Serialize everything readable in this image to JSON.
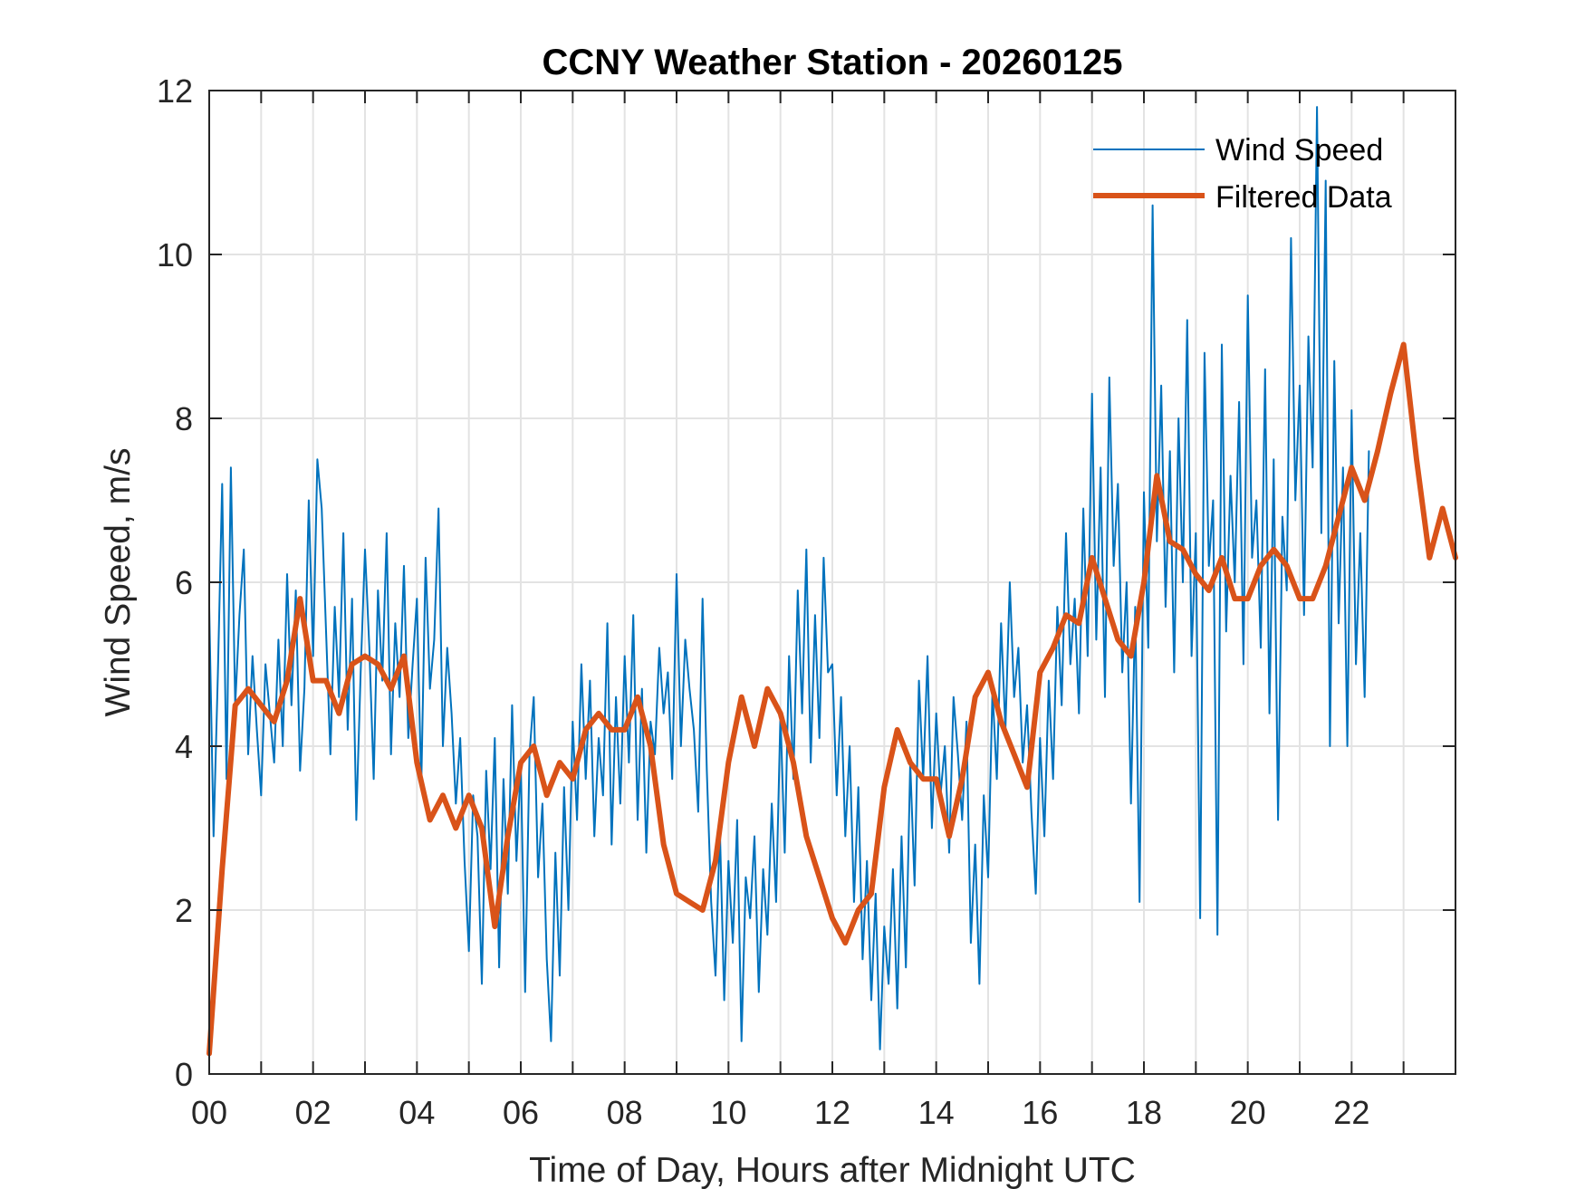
{
  "chart_data": {
    "type": "line",
    "title": "CCNY Weather Station - 20260125",
    "xlabel": "Time of Day, Hours after Midnight UTC",
    "ylabel": "Wind Speed, m/s",
    "xlim": [
      0,
      24
    ],
    "ylim": [
      0,
      12
    ],
    "xticks": [
      0,
      2,
      4,
      6,
      8,
      10,
      12,
      14,
      16,
      18,
      20,
      22
    ],
    "xtick_labels": [
      "00",
      "02",
      "04",
      "06",
      "08",
      "10",
      "12",
      "14",
      "16",
      "18",
      "20",
      "22"
    ],
    "xgrid": [
      0,
      1,
      2,
      3,
      4,
      5,
      6,
      7,
      8,
      9,
      10,
      11,
      12,
      13,
      14,
      15,
      16,
      17,
      18,
      19,
      20,
      21,
      22,
      23
    ],
    "yticks": [
      0,
      2,
      4,
      6,
      8,
      10,
      12
    ],
    "ytick_labels": [
      "0",
      "2",
      "4",
      "6",
      "8",
      "10",
      "12"
    ],
    "grid": true,
    "legend_position": "top-right",
    "series": [
      {
        "name": "Wind Speed",
        "color": "#0072BD",
        "x_start": 0,
        "x_step_hours": 0.0833333,
        "values": [
          5.7,
          2.9,
          4.9,
          7.2,
          3.6,
          7.4,
          4.5,
          5.6,
          6.4,
          3.9,
          5.1,
          4.2,
          3.4,
          5.0,
          4.4,
          3.8,
          5.3,
          4.0,
          6.1,
          4.5,
          5.9,
          3.7,
          4.7,
          7.0,
          5.1,
          7.5,
          6.9,
          5.4,
          3.9,
          5.7,
          4.6,
          6.6,
          4.2,
          5.8,
          3.1,
          4.9,
          6.4,
          5.2,
          3.6,
          5.9,
          4.8,
          6.6,
          3.9,
          5.5,
          4.6,
          6.2,
          4.1,
          5.0,
          5.8,
          3.5,
          6.3,
          4.7,
          5.3,
          6.9,
          4.0,
          5.2,
          4.4,
          3.3,
          4.1,
          2.6,
          1.5,
          3.4,
          2.9,
          1.1,
          3.7,
          2.5,
          4.1,
          1.3,
          3.6,
          2.2,
          4.5,
          2.6,
          3.8,
          1.0,
          3.9,
          4.6,
          2.4,
          3.3,
          1.4,
          0.4,
          2.7,
          1.2,
          3.5,
          2.0,
          4.3,
          3.1,
          5.0,
          3.6,
          4.8,
          2.9,
          4.1,
          3.4,
          5.5,
          2.8,
          4.6,
          3.3,
          5.1,
          3.8,
          5.6,
          3.1,
          4.7,
          2.7,
          4.3,
          3.9,
          5.2,
          4.4,
          4.9,
          3.6,
          6.1,
          4.0,
          5.3,
          4.7,
          4.2,
          3.2,
          5.8,
          3.7,
          2.1,
          1.2,
          3.0,
          0.9,
          2.6,
          1.6,
          3.1,
          0.4,
          2.4,
          1.9,
          2.9,
          1.0,
          2.5,
          1.7,
          3.3,
          2.1,
          4.4,
          2.7,
          5.1,
          3.6,
          5.9,
          4.4,
          6.4,
          3.8,
          5.6,
          4.1,
          6.3,
          4.9,
          5.0,
          3.4,
          4.6,
          2.9,
          4.0,
          2.1,
          3.5,
          1.4,
          2.6,
          0.9,
          2.2,
          0.3,
          1.8,
          1.1,
          2.5,
          0.8,
          2.9,
          1.3,
          3.8,
          2.3,
          4.8,
          3.6,
          5.1,
          3.0,
          4.4,
          3.4,
          4.0,
          2.7,
          4.6,
          3.9,
          3.1,
          4.3,
          1.6,
          2.8,
          1.1,
          3.4,
          2.4,
          4.7,
          3.6,
          5.5,
          4.2,
          6.0,
          4.6,
          5.2,
          3.8,
          4.5,
          3.2,
          2.2,
          4.1,
          2.9,
          4.8,
          3.6,
          5.7,
          4.5,
          6.6,
          5.0,
          5.8,
          4.4,
          6.9,
          5.1,
          8.3,
          5.3,
          7.4,
          4.6,
          8.5,
          6.2,
          7.2,
          4.9,
          6.0,
          3.3,
          5.7,
          2.1,
          7.1,
          5.2,
          10.6,
          6.5,
          8.4,
          5.7,
          7.6,
          4.9,
          8.0,
          6.0,
          9.2,
          5.1,
          6.6,
          1.9,
          8.8,
          6.2,
          7.0,
          1.7,
          8.9,
          5.4,
          7.3,
          6.0,
          8.2,
          5.0,
          9.5,
          6.3,
          7.0,
          5.2,
          8.6,
          4.4,
          7.5,
          3.1,
          6.8,
          5.9,
          10.2,
          7.0,
          8.4,
          5.6,
          9.0,
          7.4,
          11.8,
          6.6,
          10.9,
          4.0,
          8.7,
          5.5,
          7.4,
          4.0,
          8.1,
          5.0,
          6.6,
          4.6,
          7.6
        ]
      },
      {
        "name": "Filtered Data",
        "color": "#D95319",
        "x_start": 0,
        "x_step_hours": 0.25,
        "values": [
          0.25,
          2.5,
          4.5,
          4.7,
          4.5,
          4.3,
          4.8,
          5.8,
          4.8,
          4.8,
          4.4,
          5.0,
          5.1,
          5.0,
          4.7,
          5.1,
          3.8,
          3.1,
          3.4,
          3.0,
          3.4,
          3.0,
          1.8,
          2.9,
          3.8,
          4.0,
          3.4,
          3.8,
          3.6,
          4.2,
          4.4,
          4.2,
          4.2,
          4.6,
          4.0,
          2.8,
          2.2,
          2.1,
          2.0,
          2.6,
          3.8,
          4.6,
          4.0,
          4.7,
          4.4,
          3.8,
          2.9,
          2.4,
          1.9,
          1.6,
          2.0,
          2.2,
          3.5,
          4.2,
          3.8,
          3.6,
          3.6,
          2.9,
          3.6,
          4.6,
          4.9,
          4.3,
          3.9,
          3.5,
          4.9,
          5.2,
          5.6,
          5.5,
          6.3,
          5.8,
          5.3,
          5.1,
          6.0,
          7.3,
          6.5,
          6.4,
          6.1,
          5.9,
          6.3,
          5.8,
          5.8,
          6.2,
          6.4,
          6.2,
          5.8,
          5.8,
          6.2,
          6.8,
          7.4,
          7.0,
          7.6,
          8.3,
          8.9,
          7.5,
          6.3,
          6.9,
          6.3
        ]
      }
    ]
  }
}
